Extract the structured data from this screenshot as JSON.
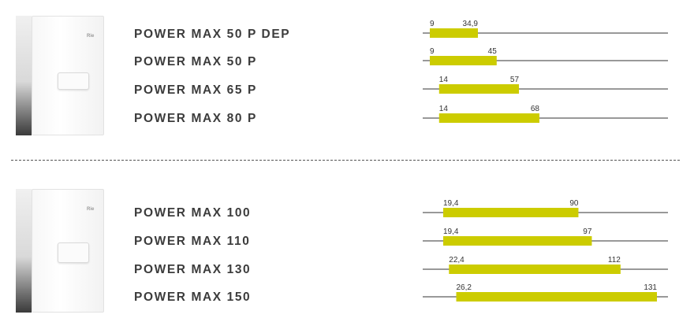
{
  "colors": {
    "bar": "#cccc00",
    "axis_line": "#333333",
    "label_text": "#3c3c3c"
  },
  "groups": [
    {
      "image": "boiler-image",
      "models": [
        "POWER MAX 50 P DEP",
        "POWER MAX 50 P",
        "POWER MAX 65 P",
        "POWER MAX 80 P"
      ]
    },
    {
      "image": "boiler-image",
      "models": [
        "POWER MAX 100",
        "POWER MAX 110",
        "POWER MAX 130",
        "POWER MAX 150"
      ]
    }
  ],
  "chart_data": [
    {
      "type": "bar",
      "categories": [
        "POWER MAX 50 P DEP",
        "POWER MAX 50 P",
        "POWER MAX 65 P",
        "POWER MAX 80 P"
      ],
      "ranges": [
        {
          "min": 9,
          "max": 34.9,
          "min_label": "9",
          "max_label": "34,9"
        },
        {
          "min": 9,
          "max": 45,
          "min_label": "9",
          "max_label": "45"
        },
        {
          "min": 14,
          "max": 57,
          "min_label": "14",
          "max_label": "57"
        },
        {
          "min": 14,
          "max": 68,
          "min_label": "14",
          "max_label": "68"
        }
      ],
      "xlim": [
        0,
        75
      ]
    },
    {
      "type": "bar",
      "categories": [
        "POWER MAX 100",
        "POWER MAX 110",
        "POWER MAX 130",
        "POWER MAX 150"
      ],
      "ranges": [
        {
          "min": 19.4,
          "max": 90,
          "min_label": "19,4",
          "max_label": "90"
        },
        {
          "min": 19.4,
          "max": 97,
          "min_label": "19,4",
          "max_label": "97"
        },
        {
          "min": 22.4,
          "max": 112,
          "min_label": "22,4",
          "max_label": "112"
        },
        {
          "min": 26.2,
          "max": 131,
          "min_label": "26,2",
          "max_label": "131"
        }
      ],
      "xlim": [
        4,
        150
      ]
    }
  ]
}
